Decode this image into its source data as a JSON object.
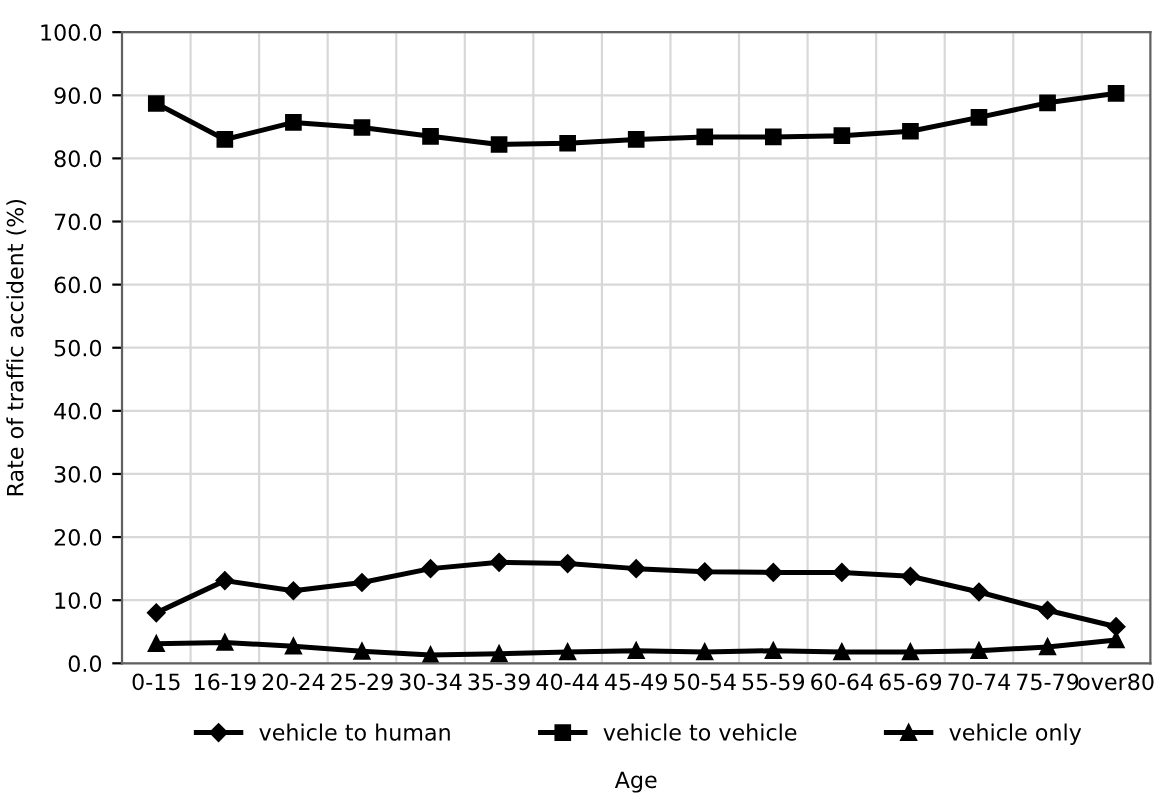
{
  "chart_data": {
    "type": "line",
    "xlabel": "Age",
    "ylabel": "Rate of traffic accident (%)",
    "categories": [
      "0-15",
      "16-19",
      "20-24",
      "25-29",
      "30-34",
      "35-39",
      "40-44",
      "45-49",
      "50-54",
      "55-59",
      "60-64",
      "65-69",
      "70-74",
      "75-79",
      "over80"
    ],
    "series": [
      {
        "name": "vehicle to human",
        "color": "#000000",
        "marker": "diamond",
        "values": [
          8.0,
          13.1,
          11.5,
          12.8,
          15.0,
          16.0,
          15.8,
          15.0,
          14.5,
          14.4,
          14.4,
          13.8,
          11.3,
          8.4,
          5.8
        ]
      },
      {
        "name": "vehicle to vehicle",
        "color": "#000000",
        "marker": "square",
        "values": [
          88.7,
          83.0,
          85.7,
          84.9,
          83.5,
          82.2,
          82.4,
          83.0,
          83.4,
          83.4,
          83.6,
          84.3,
          86.5,
          88.8,
          90.3
        ]
      },
      {
        "name": "vehicle only",
        "color": "#000000",
        "marker": "triangle",
        "values": [
          3.1,
          3.3,
          2.7,
          1.9,
          1.3,
          1.5,
          1.8,
          2.0,
          1.8,
          2.0,
          1.8,
          1.8,
          2.0,
          2.6,
          3.7
        ]
      }
    ],
    "ylim": [
      0,
      100
    ],
    "yticks": [
      {
        "value": 0,
        "label": "0.0"
      },
      {
        "value": 10,
        "label": "10.0"
      },
      {
        "value": 20,
        "label": "20.0"
      },
      {
        "value": 30,
        "label": "30.0"
      },
      {
        "value": 40,
        "label": "40.0"
      },
      {
        "value": 50,
        "label": "50.0"
      },
      {
        "value": 60,
        "label": "60.0"
      },
      {
        "value": 70,
        "label": "70.0"
      },
      {
        "value": 80,
        "label": "80.0"
      },
      {
        "value": 90,
        "label": "90.0"
      },
      {
        "value": 100,
        "label": "100.0"
      }
    ],
    "grid": true,
    "legend": "bottom",
    "line_style": "solid"
  }
}
